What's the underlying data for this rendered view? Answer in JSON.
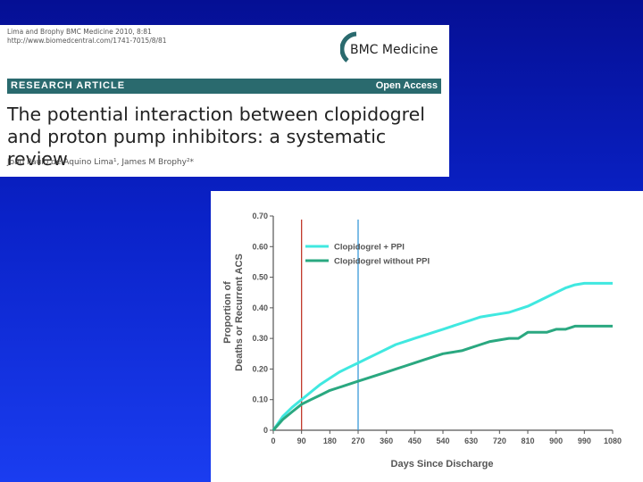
{
  "paper": {
    "citation_line1": "Lima and Brophy BMC Medicine 2010, 8:81",
    "citation_line2": "http://www.biomedcentral.com/1741-7015/8/81",
    "journal": "BMC Medicine",
    "section_label": "RESEARCH ARTICLE",
    "access_label": "Open Access",
    "title_line1": "The potential interaction between clopidogrel",
    "title_line2": "and proton pump inhibitors: a systematic review",
    "authors": "Joao Paulo de Aquino Lima¹, James M Brophy²*",
    "colors": {
      "bar": "#2a6a6e",
      "logo": "#2a6a6e"
    }
  },
  "chart_data": {
    "type": "line",
    "xlabel": "Days Since Discharge",
    "ylabel_line1": "Proportion of",
    "ylabel_line2": "Deaths or Recurrent ACS",
    "xlim": [
      0,
      1080
    ],
    "ylim": [
      0,
      0.7
    ],
    "x_ticks": [
      "0",
      "90",
      "180",
      "270",
      "360",
      "450",
      "540",
      "630",
      "720",
      "810",
      "900",
      "990",
      "1080"
    ],
    "y_ticks": [
      "0",
      "0.10",
      "0.20",
      "0.30",
      "0.40",
      "0.50",
      "0.60",
      "0.70"
    ],
    "vertical_lines": [
      {
        "x": 90,
        "color": "#c0392b"
      },
      {
        "x": 270,
        "color": "#3a9ad9"
      }
    ],
    "legend_position": "top-left",
    "series": [
      {
        "name": "Clopidogrel + PPI",
        "color": "#40e8e0",
        "x": [
          0,
          30,
          60,
          90,
          120,
          150,
          180,
          210,
          240,
          270,
          300,
          330,
          360,
          390,
          420,
          450,
          480,
          510,
          540,
          570,
          600,
          630,
          660,
          690,
          720,
          750,
          780,
          810,
          840,
          870,
          900,
          930,
          960,
          990,
          1020,
          1050,
          1080
        ],
        "values": [
          0,
          0.045,
          0.075,
          0.1,
          0.125,
          0.15,
          0.17,
          0.19,
          0.205,
          0.22,
          0.235,
          0.25,
          0.265,
          0.28,
          0.29,
          0.3,
          0.31,
          0.32,
          0.33,
          0.34,
          0.35,
          0.36,
          0.37,
          0.375,
          0.38,
          0.385,
          0.395,
          0.405,
          0.42,
          0.435,
          0.45,
          0.465,
          0.475,
          0.48,
          0.48,
          0.48,
          0.48
        ]
      },
      {
        "name": "Clopidogrel without PPI",
        "color": "#2aa880",
        "x": [
          0,
          30,
          60,
          90,
          120,
          150,
          180,
          210,
          240,
          270,
          300,
          330,
          360,
          390,
          420,
          450,
          480,
          510,
          540,
          570,
          600,
          630,
          660,
          690,
          720,
          750,
          780,
          810,
          840,
          870,
          900,
          930,
          960,
          990,
          1020,
          1050,
          1080
        ],
        "values": [
          0,
          0.035,
          0.06,
          0.085,
          0.1,
          0.115,
          0.13,
          0.14,
          0.15,
          0.16,
          0.17,
          0.18,
          0.19,
          0.2,
          0.21,
          0.22,
          0.23,
          0.24,
          0.25,
          0.255,
          0.26,
          0.27,
          0.28,
          0.29,
          0.295,
          0.3,
          0.3,
          0.32,
          0.32,
          0.32,
          0.33,
          0.33,
          0.34,
          0.34,
          0.34,
          0.34,
          0.34
        ]
      }
    ]
  }
}
